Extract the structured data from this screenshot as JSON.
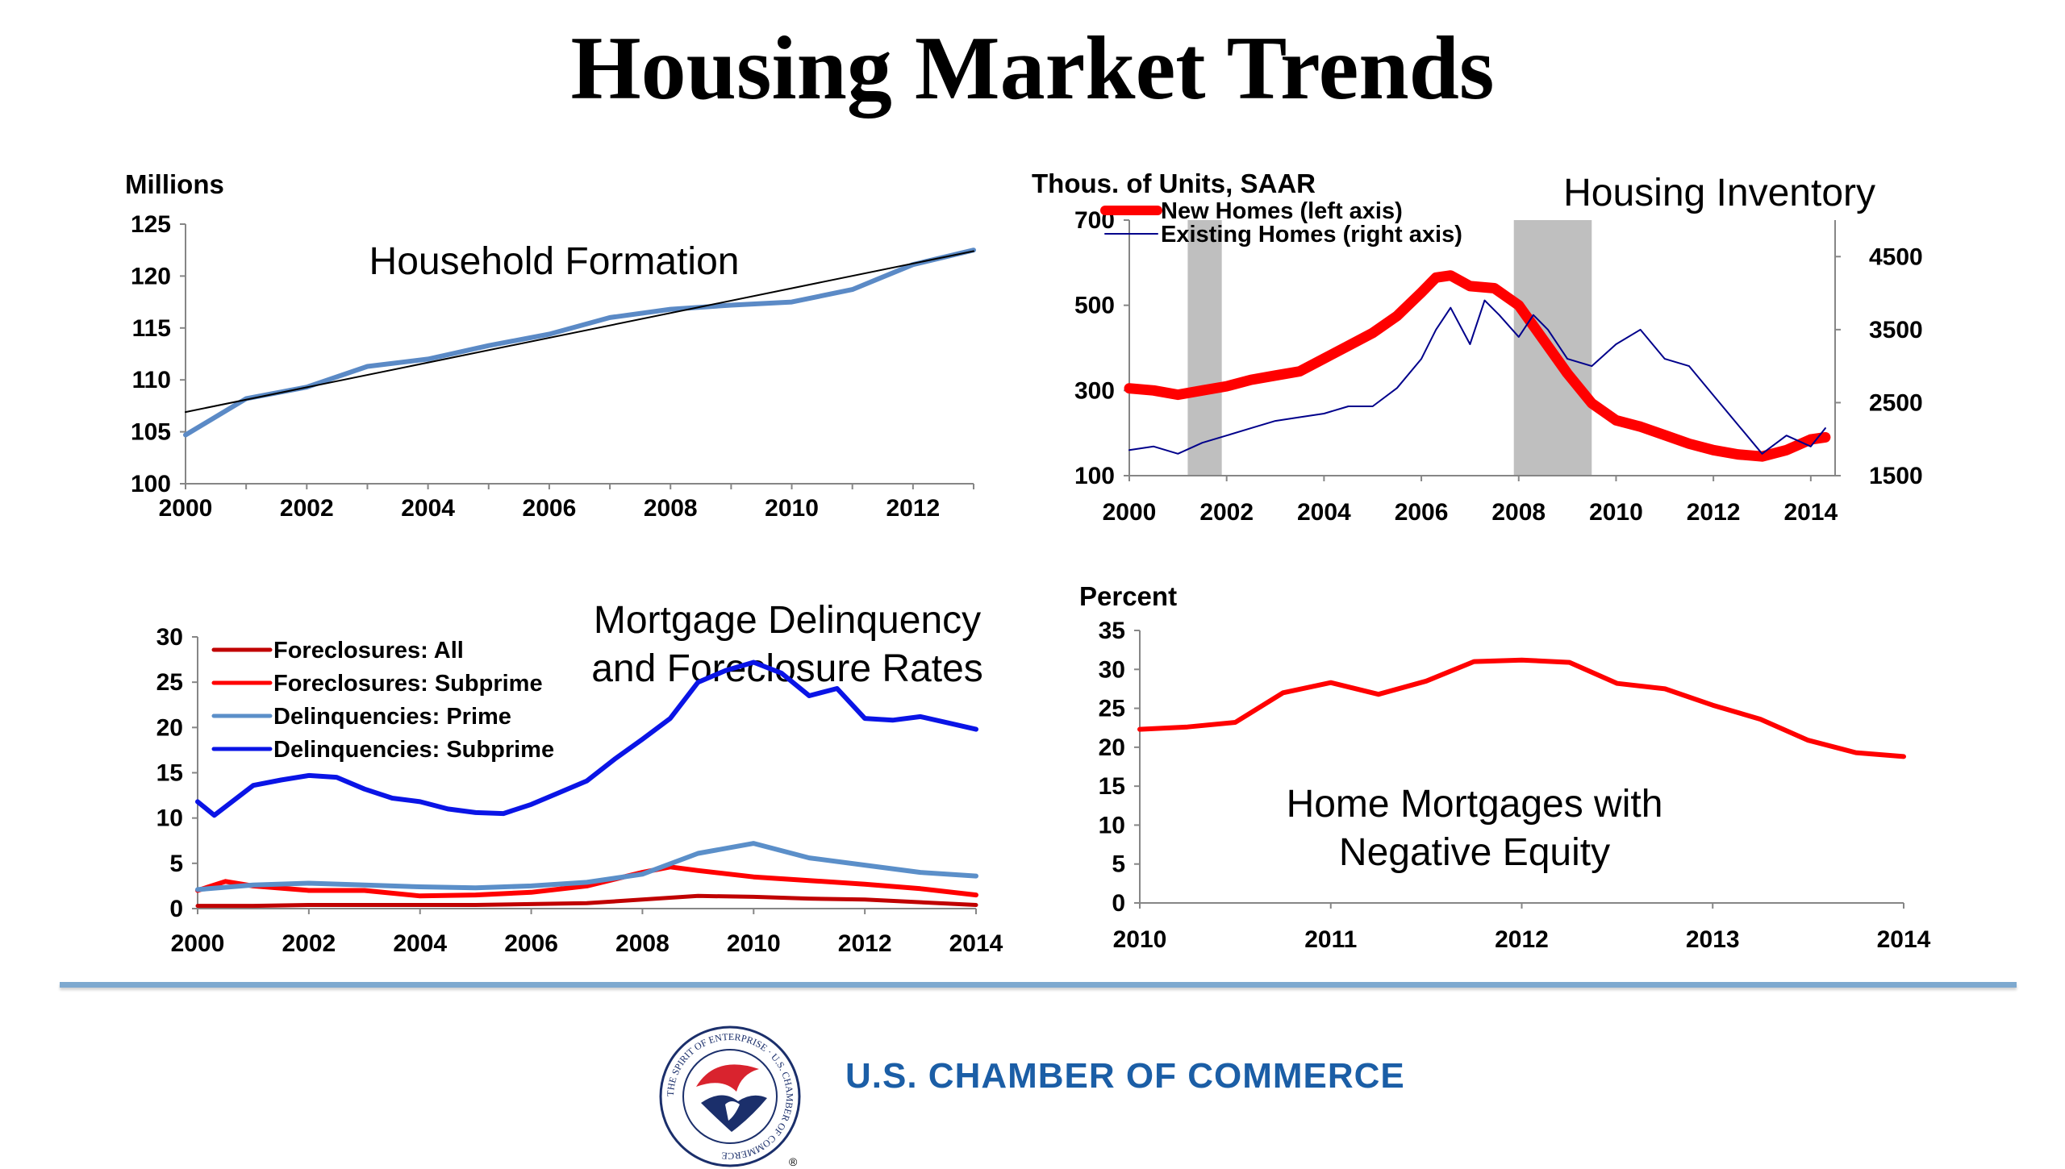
{
  "page": {
    "title": "Housing Market Trends"
  },
  "footer": {
    "org_name": "U.S. CHAMBER OF COMMERCE",
    "seal_text": "THE SPIRIT OF ENTERPRISE · U.S. CHAMBER OF COMMERCE",
    "registered_mark": "®"
  },
  "colors": {
    "blue_line": "#5b8ac6",
    "red": "#ff0000",
    "dark_red": "#c00000",
    "navy": "#00008b",
    "blue": "#0a14e6",
    "light_blue": "#5b8fc9",
    "recession": "#bfbfbf",
    "footer_rule": "#7ea9cf",
    "org_text": "#1b5ea6"
  },
  "chart_data": [
    {
      "type": "line",
      "title": "Household Formation",
      "ylabel": "Millions",
      "xlim": [
        2000,
        2013
      ],
      "ylim": [
        100,
        125
      ],
      "x_ticks": [
        2000,
        2002,
        2004,
        2006,
        2008,
        2010,
        2012
      ],
      "y_ticks": [
        100,
        105,
        110,
        115,
        120,
        125
      ],
      "series": [
        {
          "x": [
            2000,
            2001,
            2002,
            2003,
            2004,
            2005,
            2006,
            2007,
            2008,
            2009,
            2010,
            2011,
            2012,
            2013
          ],
          "values": [
            104.7,
            108.2,
            109.3,
            111.3,
            112.0,
            113.3,
            114.4,
            116.0,
            116.8,
            117.2,
            117.5,
            118.7,
            121.1,
            122.5
          ],
          "color": "#5b8ac6"
        },
        {
          "x": [
            2000,
            2013
          ],
          "values": [
            106.9,
            122.4
          ],
          "color": "#000000",
          "style": "trendline"
        }
      ]
    },
    {
      "type": "line",
      "title": "Housing Inventory",
      "ylabel": "Thous. of Units, SAAR",
      "xlim": [
        2000,
        2014.5
      ],
      "ylim": [
        100,
        700
      ],
      "y2lim": [
        1500,
        5000
      ],
      "x_ticks": [
        2000,
        2002,
        2004,
        2006,
        2008,
        2010,
        2012,
        2014
      ],
      "y_ticks": [
        100,
        300,
        500,
        700
      ],
      "y2_ticks": [
        1500,
        2500,
        3500,
        4500
      ],
      "recessions": [
        [
          2001.2,
          2001.9
        ],
        [
          2007.9,
          2009.5
        ]
      ],
      "legend_position": "top-left",
      "series": [
        {
          "name": "New Homes (left axis)",
          "axis": "left",
          "color": "#ff0000",
          "x": [
            2000,
            2000.5,
            2001,
            2001.5,
            2002,
            2002.5,
            2003,
            2003.5,
            2004,
            2004.5,
            2005,
            2005.5,
            2006,
            2006.3,
            2006.6,
            2007,
            2007.5,
            2008,
            2008.5,
            2009,
            2009.5,
            2010,
            2010.5,
            2011,
            2011.5,
            2012,
            2012.5,
            2013,
            2013.5,
            2014,
            2014.3
          ],
          "values": [
            305,
            300,
            290,
            300,
            310,
            325,
            335,
            345,
            375,
            405,
            435,
            475,
            530,
            565,
            570,
            545,
            540,
            500,
            420,
            340,
            270,
            230,
            215,
            195,
            175,
            160,
            150,
            145,
            160,
            185,
            190
          ]
        },
        {
          "name": "Existing Homes (right axis)",
          "axis": "right",
          "color": "#00008b",
          "x": [
            2000,
            2000.5,
            2001,
            2001.5,
            2002,
            2002.5,
            2003,
            2003.5,
            2004,
            2004.5,
            2005,
            2005.5,
            2006,
            2006.3,
            2006.6,
            2007,
            2007.3,
            2007.6,
            2008,
            2008.3,
            2008.6,
            2009,
            2009.5,
            2010,
            2010.5,
            2011,
            2011.5,
            2012,
            2012.5,
            2013,
            2013.5,
            2014,
            2014.3
          ],
          "values": [
            1850,
            1900,
            1800,
            1950,
            2050,
            2150,
            2250,
            2300,
            2350,
            2450,
            2450,
            2700,
            3100,
            3500,
            3800,
            3300,
            3900,
            3700,
            3400,
            3700,
            3500,
            3100,
            3000,
            3300,
            3500,
            3100,
            3000,
            2600,
            2200,
            1800,
            2050,
            1900,
            2150
          ]
        }
      ]
    },
    {
      "type": "line",
      "title": "Mortgage Delinquency and Foreclosure Rates",
      "xlim": [
        2000,
        2014
      ],
      "ylim": [
        0,
        30
      ],
      "x_ticks": [
        2000,
        2002,
        2004,
        2006,
        2008,
        2010,
        2012,
        2014
      ],
      "y_ticks": [
        0,
        5,
        10,
        15,
        20,
        25,
        30
      ],
      "legend_position": "top-left",
      "series": [
        {
          "name": "Foreclosures: All",
          "color": "#c00000",
          "x": [
            2000,
            2001,
            2002,
            2003,
            2004,
            2005,
            2006,
            2007,
            2008,
            2009,
            2010,
            2011,
            2012,
            2013,
            2014
          ],
          "values": [
            0.3,
            0.3,
            0.4,
            0.4,
            0.4,
            0.4,
            0.5,
            0.6,
            1.0,
            1.4,
            1.3,
            1.1,
            1.0,
            0.7,
            0.4
          ]
        },
        {
          "name": "Foreclosures: Subprime",
          "color": "#ff0000",
          "x": [
            2000,
            2000.5,
            2001,
            2002,
            2003,
            2004,
            2005,
            2006,
            2007,
            2008,
            2008.5,
            2009,
            2010,
            2011,
            2012,
            2013,
            2014
          ],
          "values": [
            2.0,
            3.0,
            2.5,
            2.0,
            2.0,
            1.4,
            1.5,
            1.8,
            2.5,
            4.0,
            4.6,
            4.2,
            3.5,
            3.1,
            2.7,
            2.2,
            1.5
          ]
        },
        {
          "name": "Delinquencies: Prime",
          "color": "#5b8fc9",
          "x": [
            2000,
            2001,
            2002,
            2003,
            2004,
            2005,
            2006,
            2007,
            2008,
            2009,
            2010,
            2011,
            2012,
            2013,
            2014
          ],
          "values": [
            2.1,
            2.6,
            2.8,
            2.6,
            2.4,
            2.3,
            2.5,
            2.9,
            3.8,
            6.1,
            7.2,
            5.6,
            4.8,
            4.0,
            3.6
          ]
        },
        {
          "name": "Delinquencies: Subprime",
          "color": "#0a14e6",
          "x": [
            2000,
            2000.3,
            2001,
            2001.5,
            2002,
            2002.5,
            2003,
            2003.5,
            2004,
            2004.5,
            2005,
            2005.5,
            2006,
            2006.5,
            2007,
            2007.5,
            2008,
            2008.5,
            2009,
            2009.5,
            2010,
            2010.5,
            2011,
            2011.5,
            2012,
            2012.5,
            2013,
            2013.5,
            2014
          ],
          "values": [
            11.8,
            10.3,
            13.6,
            14.2,
            14.7,
            14.5,
            13.2,
            12.2,
            11.8,
            11.0,
            10.6,
            10.5,
            11.5,
            12.8,
            14.1,
            16.5,
            18.7,
            21.0,
            25.0,
            26.3,
            27.2,
            26.0,
            23.5,
            24.3,
            21.0,
            20.8,
            21.2,
            20.5,
            19.8
          ]
        }
      ]
    },
    {
      "type": "line",
      "title": "Home Mortgages with Negative Equity",
      "ylabel": "Percent",
      "xlim": [
        2010,
        2014
      ],
      "ylim": [
        0,
        35
      ],
      "x_ticks": [
        2010,
        2011,
        2012,
        2013,
        2014
      ],
      "y_ticks": [
        0,
        5,
        10,
        15,
        20,
        25,
        30,
        35
      ],
      "series": [
        {
          "color": "#ff0000",
          "x": [
            2010,
            2010.25,
            2010.5,
            2010.75,
            2011,
            2011.25,
            2011.5,
            2011.75,
            2012,
            2012.25,
            2012.5,
            2012.75,
            2013,
            2013.25,
            2013.5,
            2013.75,
            2014
          ],
          "values": [
            22.3,
            22.6,
            23.2,
            27.0,
            28.3,
            26.8,
            28.5,
            31.0,
            31.2,
            30.9,
            28.2,
            27.5,
            25.4,
            23.6,
            20.9,
            19.3,
            18.8
          ]
        }
      ]
    }
  ]
}
